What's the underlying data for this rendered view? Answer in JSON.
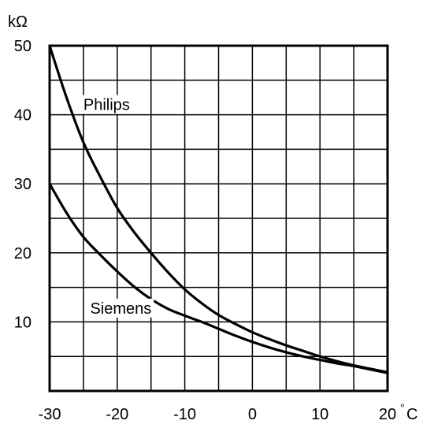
{
  "chart_data": {
    "type": "line",
    "title": "",
    "xlabel": "",
    "ylabel": "",
    "y_unit": "kΩ",
    "x_unit": "°C",
    "xlim": [
      -30,
      20
    ],
    "ylim": [
      0,
      50
    ],
    "x_ticks": [
      -30,
      -20,
      -10,
      0,
      10,
      20
    ],
    "x_tick_labels": [
      "-30",
      "-20",
      "-10",
      "0",
      "10",
      "20"
    ],
    "y_ticks": [
      10,
      20,
      30,
      40,
      50
    ],
    "y_tick_labels": [
      "10",
      "20",
      "30",
      "40",
      "50"
    ],
    "grid": true,
    "grid_step_x": 5,
    "grid_step_y": 5,
    "legend": "none",
    "series": [
      {
        "name": "Philips",
        "x": [
          -30,
          -27.5,
          -25,
          -22.5,
          -20,
          -17.5,
          -15,
          -12.5,
          -10,
          -7.5,
          -5,
          -2.5,
          0,
          2.5,
          5,
          7.5,
          10,
          12.5,
          15,
          17.5,
          20
        ],
        "y": [
          50,
          42.5,
          36,
          31,
          26.5,
          23,
          20,
          17.2,
          14.7,
          12.7,
          11.0,
          9.7,
          8.5,
          7.5,
          6.6,
          5.8,
          5.0,
          4.3,
          3.7,
          3.2,
          2.7
        ]
      },
      {
        "name": "Siemens",
        "x": [
          -30,
          -27.5,
          -25,
          -22.5,
          -20,
          -17.5,
          -15,
          -12.5,
          -10,
          -7.5,
          -5,
          -2.5,
          0,
          2.5,
          5,
          7.5,
          10,
          12.5,
          15,
          17.5,
          20
        ],
        "y": [
          30,
          25.8,
          22.3,
          19.7,
          17.3,
          15.1,
          13.3,
          11.9,
          10.9,
          10.0,
          9.0,
          8.0,
          7.1,
          6.3,
          5.6,
          5.0,
          4.5,
          4.0,
          3.6,
          3.1,
          2.6
        ]
      }
    ],
    "annotations": [
      {
        "text": "Philips",
        "x": -25,
        "y": 41.5
      },
      {
        "text": "Siemens",
        "x": -24,
        "y": 12
      }
    ]
  }
}
